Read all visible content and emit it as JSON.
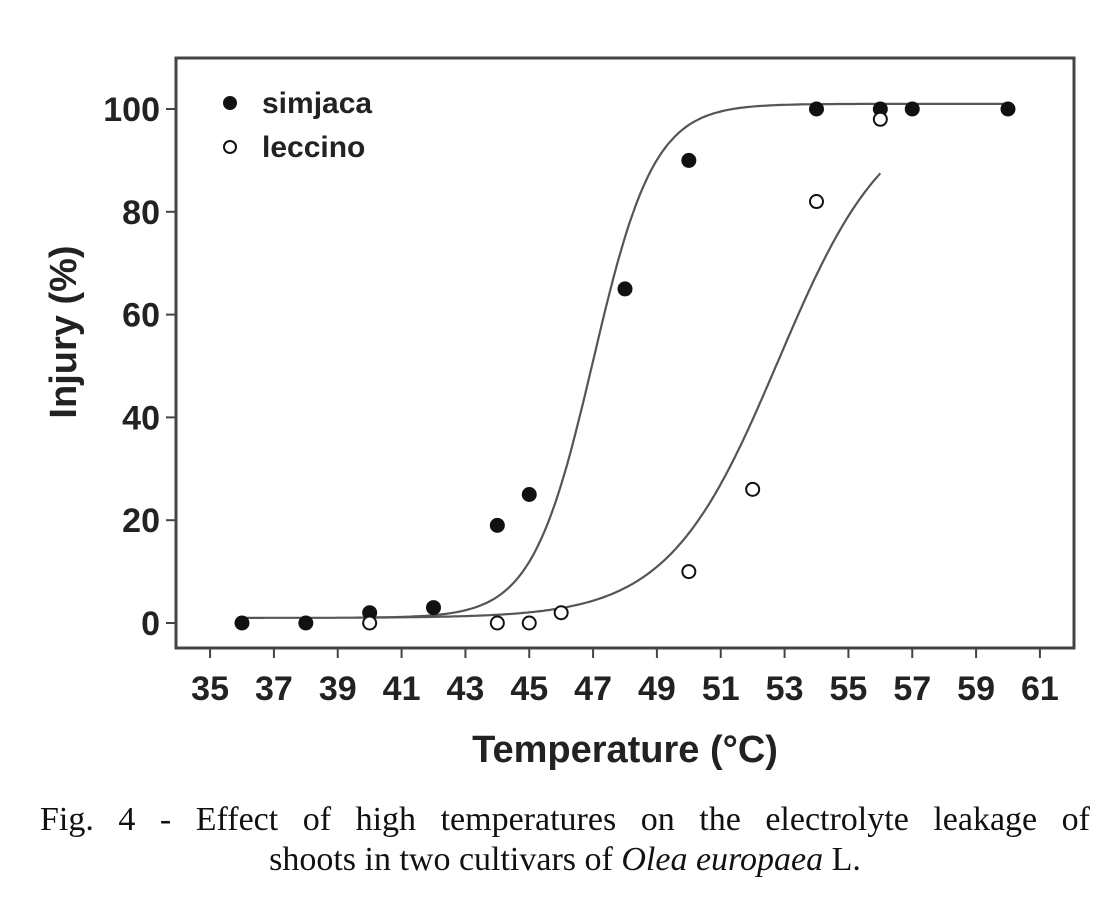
{
  "chart_data": {
    "type": "scatter",
    "xlabel": "Temperature (°C)",
    "ylabel": "Injury (%)",
    "xlim": [
      34,
      62
    ],
    "ylim": [
      -5,
      110
    ],
    "xticks": [
      35,
      37,
      39,
      41,
      43,
      45,
      47,
      49,
      51,
      53,
      55,
      57,
      59,
      61
    ],
    "yticks": [
      0,
      20,
      40,
      60,
      80,
      100
    ],
    "legend_position": "top-left",
    "grid": false,
    "series": [
      {
        "name": "simjaca",
        "marker": "filled-circle",
        "x": [
          36,
          38,
          40,
          42,
          44,
          45,
          48,
          50,
          54,
          56,
          57,
          60
        ],
        "y": [
          0,
          0,
          2,
          3,
          19,
          25,
          65,
          90,
          100,
          100,
          100,
          100
        ],
        "fit": {
          "type": "sigmoid",
          "midpoint": 47.0,
          "slope": 1.05,
          "min": 1,
          "max": 101
        }
      },
      {
        "name": "leccino",
        "marker": "open-circle",
        "x": [
          40,
          44,
          45,
          46,
          50,
          52,
          54,
          56
        ],
        "y": [
          0,
          0,
          0,
          2,
          10,
          26,
          82,
          98
        ],
        "fit": {
          "type": "sigmoid",
          "midpoint": 52.8,
          "slope": 0.58,
          "min": 1,
          "max": 101
        }
      }
    ]
  },
  "caption": {
    "line1": "Fig. 4 - Effect of high temperatures on the electrolyte leakage of",
    "line2_pre": "shoots in two cultivars of ",
    "line2_italic": "Olea europaea",
    "line2_post": " L."
  }
}
